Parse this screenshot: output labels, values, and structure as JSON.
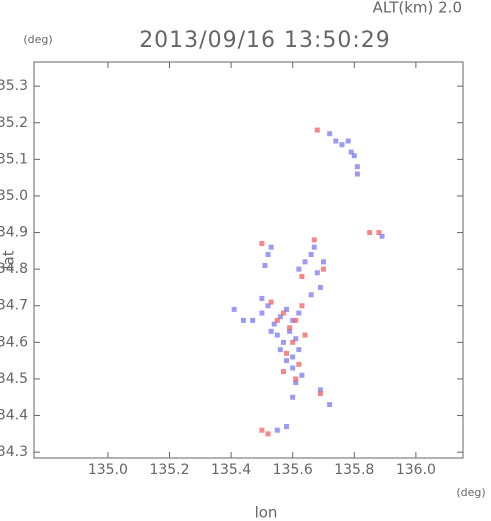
{
  "chart_data": {
    "type": "scatter",
    "title": "2013/09/16 13:50:29",
    "subtitle": "ALT(km) 2.0",
    "x_label": "lon",
    "x_unit": "(deg)",
    "y_label": "lat",
    "y_unit": "(deg)",
    "xlim": [
      134.76,
      136.153
    ],
    "ylim": [
      34.284,
      35.366
    ],
    "xticks": [
      {
        "value": 135.0,
        "label": "135.0"
      },
      135.2,
      135.4,
      135.6,
      135.8,
      {
        "value": 136.0,
        "label": "136.0"
      }
    ],
    "yticks": [
      34.3,
      34.4,
      34.5,
      34.6,
      34.7,
      34.8,
      34.9,
      {
        "value": 35.0,
        "label": "35.0"
      },
      35.1,
      35.2,
      35.3
    ],
    "series": [
      {
        "color": "#7a7af0",
        "x": [
          135.72,
          135.74,
          135.76,
          135.78,
          135.79,
          135.8,
          135.81,
          135.81,
          135.89,
          135.52,
          135.51,
          135.53,
          135.62,
          135.64,
          135.66,
          135.67,
          135.68,
          135.69,
          135.7,
          135.66,
          135.47,
          135.5,
          135.52,
          135.54,
          135.56,
          135.58,
          135.6,
          135.62,
          135.55,
          135.57,
          135.59,
          135.61,
          135.6,
          135.62,
          135.6,
          135.61,
          135.63,
          135.58,
          135.6,
          135.5,
          135.53,
          135.56,
          135.44,
          135.41,
          135.69,
          135.72,
          135.55,
          135.58
        ],
        "y": [
          35.17,
          35.15,
          35.14,
          35.15,
          35.12,
          35.11,
          35.08,
          35.06,
          34.89,
          34.84,
          34.81,
          34.86,
          34.8,
          34.82,
          34.84,
          34.86,
          34.79,
          34.75,
          34.82,
          34.73,
          34.66,
          34.68,
          34.7,
          34.65,
          34.67,
          34.69,
          34.66,
          34.68,
          34.62,
          34.6,
          34.63,
          34.61,
          34.56,
          34.58,
          34.53,
          34.49,
          34.51,
          34.55,
          34.45,
          34.72,
          34.63,
          34.58,
          34.66,
          34.69,
          34.47,
          34.43,
          34.36,
          34.37
        ]
      },
      {
        "color": "#f06060",
        "x": [
          135.68,
          135.85,
          135.88,
          135.5,
          135.63,
          135.67,
          135.7,
          135.53,
          135.55,
          135.57,
          135.59,
          135.61,
          135.63,
          135.58,
          135.6,
          135.64,
          135.57,
          135.62,
          135.61,
          135.69,
          135.5,
          135.52
        ],
        "y": [
          35.18,
          34.9,
          34.9,
          34.87,
          34.78,
          34.88,
          34.8,
          34.71,
          34.66,
          34.68,
          34.64,
          34.66,
          34.7,
          34.57,
          34.6,
          34.62,
          34.52,
          34.54,
          34.5,
          34.46,
          34.36,
          34.35
        ]
      }
    ]
  }
}
